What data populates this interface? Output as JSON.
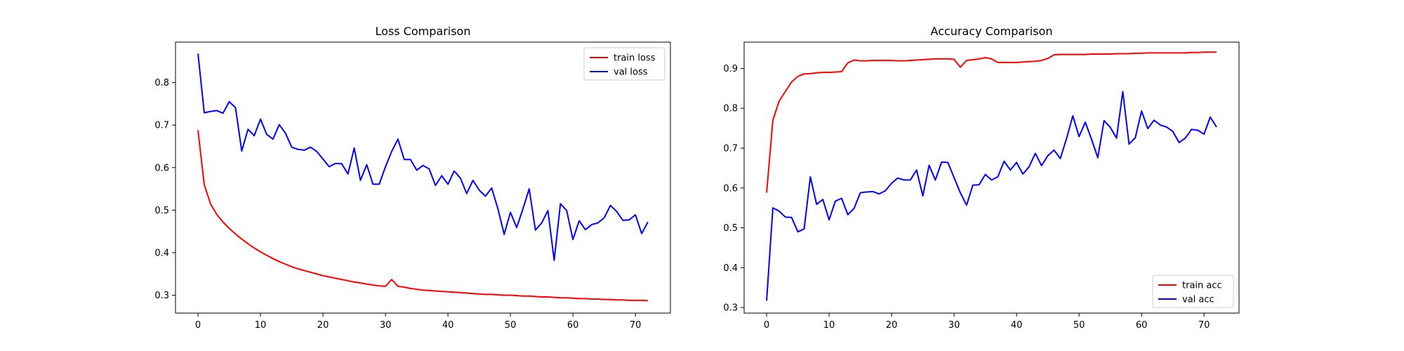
{
  "chart_data": [
    {
      "type": "line",
      "title": "Loss Comparison",
      "xlabel": "",
      "ylabel": "",
      "xlim": [
        -3.6,
        75.6
      ],
      "ylim": [
        0.258,
        0.895
      ],
      "xticks": [
        0,
        10,
        20,
        30,
        40,
        50,
        60,
        70
      ],
      "yticks": [
        0.3,
        0.4,
        0.5,
        0.6,
        0.7,
        0.8
      ],
      "xtick_labels": [
        "0",
        "10",
        "20",
        "30",
        "40",
        "50",
        "60",
        "70"
      ],
      "ytick_labels": [
        "0.3",
        "0.4",
        "0.5",
        "0.6",
        "0.7",
        "0.8"
      ],
      "grid": false,
      "legend_position": "top-right",
      "series": [
        {
          "name": "train loss",
          "color": "#ff0000",
          "values": [
            0.688,
            0.56,
            0.515,
            0.49,
            0.472,
            0.457,
            0.444,
            0.432,
            0.421,
            0.411,
            0.402,
            0.394,
            0.386,
            0.379,
            0.373,
            0.367,
            0.362,
            0.358,
            0.354,
            0.35,
            0.346,
            0.343,
            0.34,
            0.337,
            0.334,
            0.331,
            0.329,
            0.326,
            0.324,
            0.322,
            0.321,
            0.337,
            0.321,
            0.319,
            0.316,
            0.314,
            0.312,
            0.311,
            0.31,
            0.309,
            0.308,
            0.307,
            0.306,
            0.305,
            0.304,
            0.303,
            0.302,
            0.302,
            0.301,
            0.3,
            0.3,
            0.299,
            0.298,
            0.298,
            0.297,
            0.296,
            0.296,
            0.295,
            0.294,
            0.294,
            0.293,
            0.292,
            0.292,
            0.291,
            0.291,
            0.29,
            0.29,
            0.289,
            0.289,
            0.288,
            0.288,
            0.288,
            0.287
          ]
        },
        {
          "name": "val loss",
          "color": "#0000ff",
          "values": [
            0.868,
            0.729,
            0.732,
            0.734,
            0.728,
            0.755,
            0.741,
            0.639,
            0.69,
            0.675,
            0.714,
            0.678,
            0.667,
            0.701,
            0.681,
            0.648,
            0.643,
            0.641,
            0.648,
            0.638,
            0.62,
            0.602,
            0.61,
            0.609,
            0.585,
            0.646,
            0.57,
            0.607,
            0.561,
            0.561,
            0.602,
            0.638,
            0.667,
            0.619,
            0.619,
            0.594,
            0.605,
            0.597,
            0.558,
            0.581,
            0.561,
            0.592,
            0.575,
            0.539,
            0.57,
            0.547,
            0.533,
            0.552,
            0.503,
            0.443,
            0.495,
            0.459,
            0.503,
            0.55,
            0.453,
            0.47,
            0.499,
            0.382,
            0.515,
            0.499,
            0.431,
            0.475,
            0.454,
            0.466,
            0.47,
            0.482,
            0.511,
            0.497,
            0.476,
            0.477,
            0.489,
            0.445,
            0.472
          ]
        }
      ]
    },
    {
      "type": "line",
      "title": "Accuracy Comparison",
      "xlabel": "",
      "ylabel": "",
      "xlim": [
        -3.6,
        75.6
      ],
      "ylim": [
        0.286,
        0.966
      ],
      "xticks": [
        0,
        10,
        20,
        30,
        40,
        50,
        60,
        70
      ],
      "yticks": [
        0.3,
        0.4,
        0.5,
        0.6,
        0.7,
        0.8,
        0.9
      ],
      "xtick_labels": [
        "0",
        "10",
        "20",
        "30",
        "40",
        "50",
        "60",
        "70"
      ],
      "ytick_labels": [
        "0.3",
        "0.4",
        "0.5",
        "0.6",
        "0.7",
        "0.8",
        "0.9"
      ],
      "grid": false,
      "legend_position": "bottom-right",
      "series": [
        {
          "name": "train acc",
          "color": "#ff0000",
          "values": [
            0.588,
            0.77,
            0.818,
            0.842,
            0.866,
            0.88,
            0.886,
            0.887,
            0.889,
            0.89,
            0.89,
            0.891,
            0.892,
            0.914,
            0.921,
            0.919,
            0.919,
            0.92,
            0.92,
            0.92,
            0.92,
            0.919,
            0.919,
            0.92,
            0.921,
            0.922,
            0.923,
            0.924,
            0.924,
            0.924,
            0.923,
            0.903,
            0.92,
            0.922,
            0.924,
            0.927,
            0.924,
            0.915,
            0.915,
            0.915,
            0.915,
            0.916,
            0.917,
            0.918,
            0.92,
            0.925,
            0.934,
            0.935,
            0.935,
            0.935,
            0.935,
            0.935,
            0.936,
            0.936,
            0.936,
            0.936,
            0.937,
            0.937,
            0.937,
            0.938,
            0.938,
            0.939,
            0.939,
            0.939,
            0.939,
            0.939,
            0.939,
            0.939,
            0.94,
            0.94,
            0.941,
            0.941,
            0.941
          ]
        },
        {
          "name": "val acc",
          "color": "#0000ff",
          "values": [
            0.317,
            0.55,
            0.542,
            0.527,
            0.526,
            0.49,
            0.497,
            0.628,
            0.559,
            0.571,
            0.52,
            0.567,
            0.574,
            0.533,
            0.549,
            0.588,
            0.59,
            0.591,
            0.585,
            0.593,
            0.612,
            0.625,
            0.62,
            0.62,
            0.645,
            0.58,
            0.657,
            0.62,
            0.665,
            0.664,
            0.626,
            0.588,
            0.557,
            0.607,
            0.608,
            0.634,
            0.62,
            0.628,
            0.667,
            0.645,
            0.664,
            0.635,
            0.653,
            0.687,
            0.656,
            0.681,
            0.695,
            0.674,
            0.724,
            0.781,
            0.729,
            0.765,
            0.722,
            0.676,
            0.769,
            0.752,
            0.725,
            0.842,
            0.71,
            0.726,
            0.793,
            0.749,
            0.77,
            0.758,
            0.753,
            0.742,
            0.714,
            0.725,
            0.747,
            0.745,
            0.735,
            0.778,
            0.753
          ]
        }
      ]
    }
  ]
}
